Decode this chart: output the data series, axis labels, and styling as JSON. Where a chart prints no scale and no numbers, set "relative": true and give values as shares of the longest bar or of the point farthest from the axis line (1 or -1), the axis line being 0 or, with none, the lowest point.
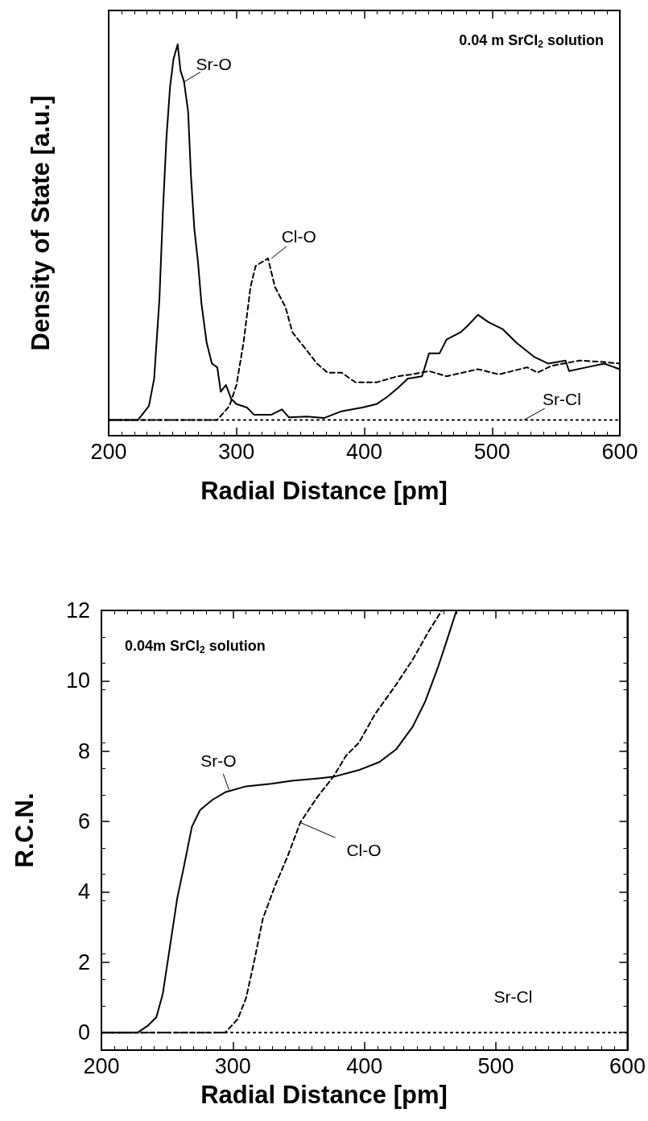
{
  "chart_data": [
    {
      "type": "line",
      "title": "0.04 m SrCl$_{2}$ solution",
      "xlabel": "Radial Distance [pm]",
      "ylabel": "Density of State [a.u.]",
      "relative": true,
      "xlim": [
        200,
        600
      ],
      "xticks": [
        200,
        300,
        400,
        500,
        600
      ],
      "tick_labels": "x",
      "marker": "none",
      "grid": false,
      "annotations": [
        {
          "text": "Sr-O",
          "x": 259,
          "y": 0.9
        },
        {
          "text": "Cl-O",
          "x": 327.4,
          "y": 0.43
        },
        {
          "text": "Sr-Cl",
          "x": 525,
          "y": 0
        }
      ],
      "series": [
        {
          "color": "#000000",
          "line_style": "solid",
          "x": [
            200,
            223,
            231.5,
            235.6,
            239.7,
            242.5,
            245.2,
            248,
            250.7,
            254,
            256.2,
            259,
            262.2,
            264.4,
            267,
            269.9,
            272.6,
            276.7,
            280.8,
            285,
            287.7,
            291.8,
            295.9,
            300,
            308.2,
            313.7,
            327.4,
            335.6,
            341,
            354.8,
            368.5,
            382.2,
            398.6,
            409.6,
            417.8,
            426,
            434.2,
            445.2,
            450.7,
            458.9,
            464.4,
            475.3,
            480.8,
            489,
            497.3,
            508.2,
            519.2,
            532.9,
            543.8,
            557.5,
            560.3,
            574,
            587.7,
            600
          ],
          "values": [
            0,
            0,
            0.037,
            0.11,
            0.32,
            0.56,
            0.75,
            0.885,
            0.96,
            1,
            0.93,
            0.9,
            0.82,
            0.65,
            0.51,
            0.42,
            0.31,
            0.205,
            0.15,
            0.14,
            0.075,
            0.093,
            0.056,
            0.042,
            0.033,
            0.014,
            0.014,
            0.028,
            0.007,
            0.009,
            0.005,
            0.023,
            0.033,
            0.042,
            0.061,
            0.084,
            0.11,
            0.116,
            0.177,
            0.177,
            0.214,
            0.233,
            0.25,
            0.28,
            0.26,
            0.242,
            0.205,
            0.168,
            0.15,
            0.158,
            0.13,
            0.14,
            0.15,
            0.135
          ]
        },
        {
          "color": "#000000",
          "line_style": "dashed",
          "x": [
            200,
            285,
            294.5,
            300,
            305.5,
            311,
            315,
            321.9,
            324.7,
            330.1,
            338.4,
            343.8,
            354.8,
            363,
            371.2,
            382.2,
            393.2,
            409.6,
            426,
            437,
            450.7,
            464.4,
            489,
            505.5,
            527.4,
            535.6,
            546.6,
            568.5,
            587.7,
            600
          ],
          "values": [
            0,
            0,
            0.037,
            0.093,
            0.205,
            0.354,
            0.41,
            0.424,
            0.43,
            0.354,
            0.3,
            0.233,
            0.186,
            0.15,
            0.126,
            0.126,
            0.1,
            0.1,
            0.116,
            0.121,
            0.13,
            0.116,
            0.135,
            0.121,
            0.14,
            0.126,
            0.144,
            0.158,
            0.154,
            0.15
          ]
        },
        {
          "color": "#000000",
          "line_style": "dotted",
          "x": [
            200,
            600
          ],
          "values": [
            0,
            0
          ]
        }
      ]
    },
    {
      "type": "line",
      "title": "0.04m SrCl$_{2}$ solution",
      "xlabel": "Radial Distance [pm]",
      "ylabel": "R.C.N.",
      "xlim": [
        200,
        600
      ],
      "xticks": [
        200,
        300,
        400,
        500,
        600
      ],
      "ylim": [
        -0.5,
        12
      ],
      "yticks": [
        0,
        2,
        4,
        6,
        8,
        10,
        12
      ],
      "marker": "none",
      "grid": false,
      "annotations": [
        {
          "text": "Sr-O",
          "x": 297,
          "y": 6.9
        },
        {
          "text": "Cl-O",
          "x": 351.2,
          "y": 5.97
        },
        {
          "text": "Sr-Cl",
          "x": 510,
          "y": 0
        }
      ],
      "series": [
        {
          "color": "#000000",
          "line_style": "solid",
          "x": [
            200,
            227.6,
            235.5,
            241.8,
            246.6,
            252.9,
            257.7,
            262.4,
            268.8,
            275.1,
            284.6,
            294.1,
            310,
            329,
            344.8,
            363.9,
            376.5,
            395.6,
            411.4,
            424.1,
            436.8,
            446.3,
            455.8,
            462.1,
            470
          ],
          "values": [
            0,
            0,
            0.2,
            0.44,
            1.09,
            2.64,
            3.83,
            4.66,
            5.85,
            6.33,
            6.62,
            6.83,
            7,
            7.07,
            7.16,
            7.22,
            7.27,
            7.46,
            7.69,
            8.05,
            8.7,
            9.42,
            10.37,
            11.08,
            12
          ]
        },
        {
          "color": "#000000",
          "line_style": "dashed",
          "x": [
            200,
            294.1,
            303.6,
            310,
            316.3,
            322.7,
            332.2,
            341.7,
            351.2,
            363.9,
            376.5,
            386,
            395.6,
            408.2,
            424.1,
            436.8,
            449.4,
            458.9
          ],
          "values": [
            0,
            0,
            0.38,
            0.98,
            2.05,
            3.23,
            4.19,
            5.02,
            5.97,
            6.68,
            7.28,
            7.87,
            8.23,
            9.06,
            9.89,
            10.61,
            11.44,
            12
          ]
        },
        {
          "color": "#000000",
          "line_style": "dotted",
          "x": [
            200,
            600
          ],
          "values": [
            0,
            0
          ]
        }
      ]
    }
  ]
}
